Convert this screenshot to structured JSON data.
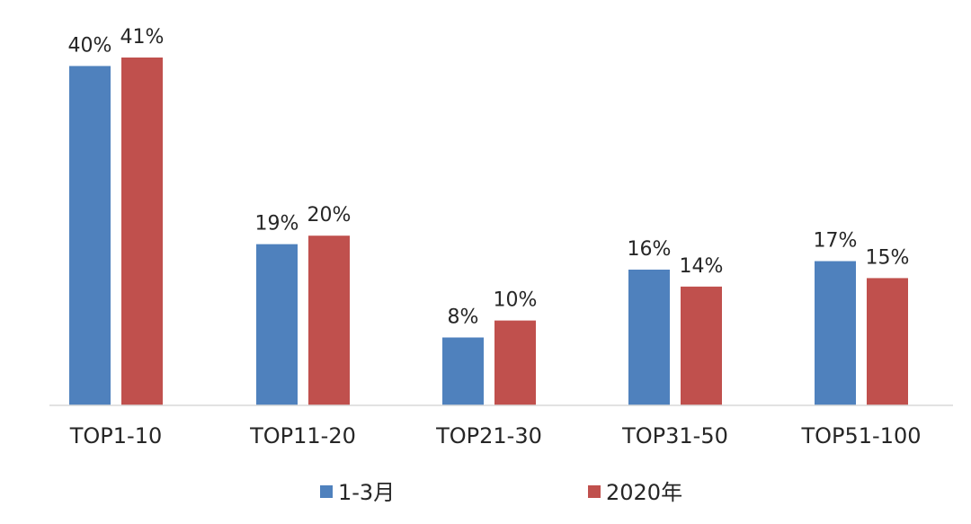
{
  "chart_data": {
    "type": "bar",
    "categories": [
      "TOP1-10",
      "TOP11-20",
      "TOP21-30",
      "TOP31-50",
      "TOP51-100"
    ],
    "series": [
      {
        "name": "1-3月",
        "values": [
          40,
          19,
          8,
          16,
          17
        ],
        "labels": [
          "40%",
          "19%",
          "8%",
          "16%",
          "17%"
        ],
        "color": "#4F81BD"
      },
      {
        "name": "2020年",
        "values": [
          41,
          20,
          10,
          14,
          15
        ],
        "labels": [
          "41%",
          "20%",
          "10%",
          "14%",
          "15%"
        ],
        "color": "#C0504D"
      }
    ],
    "title": "",
    "xlabel": "",
    "ylabel": "",
    "ylim": [
      0,
      41
    ],
    "grid": false,
    "legend_position": "bottom",
    "axis_color": "#D9D9D9"
  }
}
